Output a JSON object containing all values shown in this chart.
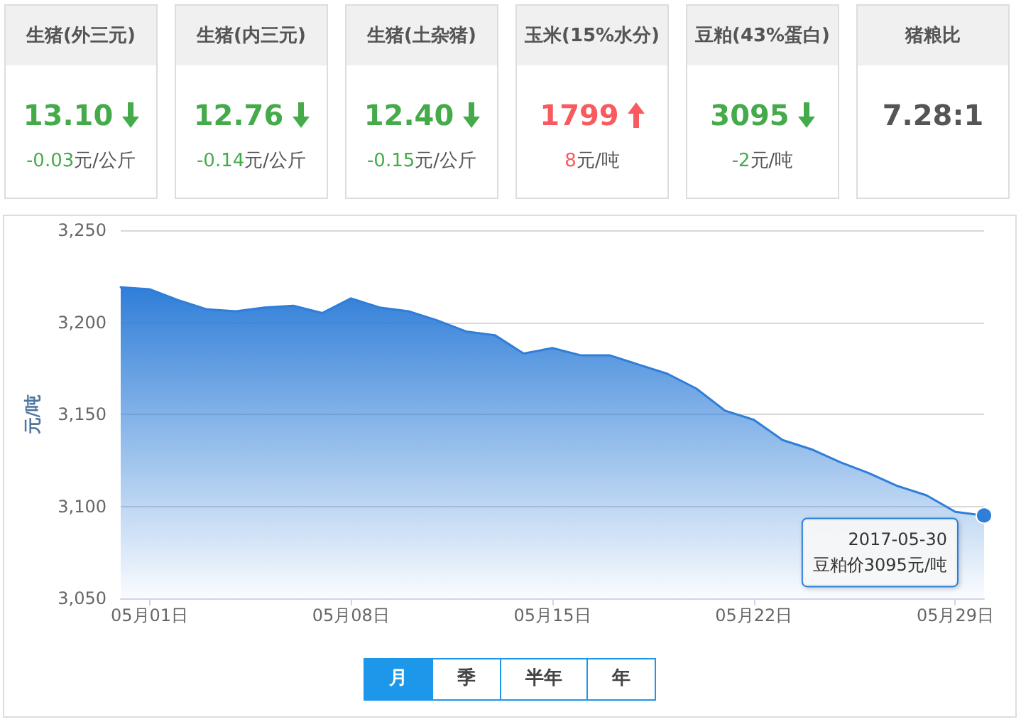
{
  "chart_data": [
    {
      "type": "other",
      "title": "生猪(外三元)",
      "annotations": [
        "13.10",
        "元/公斤"
      ],
      "values": [
        -0.03
      ],
      "data_labels": true
    },
    {
      "type": "other",
      "title": "生猪(内三元)",
      "annotations": [
        "12.76",
        "元/公斤"
      ],
      "values": [
        -0.14
      ],
      "data_labels": true
    },
    {
      "type": "other",
      "title": "生猪(土杂猪)",
      "annotations": [
        "12.40",
        "元/公斤"
      ],
      "values": [
        -0.15
      ],
      "data_labels": true
    },
    {
      "type": "other",
      "title": "玉米(15%水分)",
      "annotations": [
        "1799",
        "元/吨"
      ],
      "values": [
        8
      ],
      "data_labels": true
    },
    {
      "type": "other",
      "title": "豆粕(43%蛋白)",
      "annotations": [
        "3095",
        "元/吨"
      ],
      "values": [
        -2
      ],
      "data_labels": true
    },
    {
      "type": "other",
      "title": "猪粮比",
      "annotations": [
        "7.28:1"
      ]
    },
    {
      "type": "area",
      "ylabel": "元/吨",
      "color": "#2f7ed8",
      "marker": "none",
      "grid": "y",
      "x": [
        "2017-04-30",
        "2017-05-01",
        "2017-05-02",
        "2017-05-03",
        "2017-05-04",
        "2017-05-05",
        "2017-05-06",
        "2017-05-07",
        "2017-05-08",
        "2017-05-09",
        "2017-05-10",
        "2017-05-11",
        "2017-05-12",
        "2017-05-13",
        "2017-05-14",
        "2017-05-15",
        "2017-05-16",
        "2017-05-17",
        "2017-05-18",
        "2017-05-19",
        "2017-05-20",
        "2017-05-21",
        "2017-05-22",
        "2017-05-23",
        "2017-05-24",
        "2017-05-25",
        "2017-05-26",
        "2017-05-27",
        "2017-05-28",
        "2017-05-29",
        "2017-05-30"
      ],
      "values": [
        3219,
        3218,
        3212,
        3207,
        3206,
        3208,
        3209,
        3205,
        3213,
        3208,
        3206,
        3201,
        3195,
        3193,
        3183,
        3186,
        3182,
        3182,
        3177,
        3172,
        3164,
        3152,
        3147,
        3136,
        3131,
        3124,
        3118,
        3111,
        3106,
        3097,
        3095
      ],
      "xlim": [
        "2017-04-30",
        "2017-05-30"
      ],
      "xticks": [
        {
          "value": "2017-05-01",
          "label": "05月01日"
        },
        {
          "value": "2017-05-08",
          "label": "05月08日"
        },
        {
          "value": "2017-05-15",
          "label": "05月15日"
        },
        {
          "value": "2017-05-22",
          "label": "05月22日"
        },
        {
          "value": "2017-05-29",
          "label": "05月29日"
        }
      ],
      "ylim": [
        3050,
        3250
      ],
      "yticks": [
        {
          "value": 3050,
          "label": "3,050"
        },
        {
          "value": 3100,
          "label": "3,100"
        },
        {
          "value": 3150,
          "label": "3,150"
        },
        {
          "value": 3200,
          "label": "3,200"
        },
        {
          "value": 3250,
          "label": "3,250"
        }
      ],
      "annotations": [
        {
          "text": "2017-05-30\n豆粕价3095元/吨",
          "x": "2017-05-30",
          "y": 3095
        }
      ]
    },
    {
      "type": "other",
      "categories": [
        "月",
        "季",
        "半年",
        "年"
      ],
      "colors": [
        "#1c97ea",
        "#ffffff",
        "#ffffff",
        "#ffffff"
      ]
    }
  ]
}
